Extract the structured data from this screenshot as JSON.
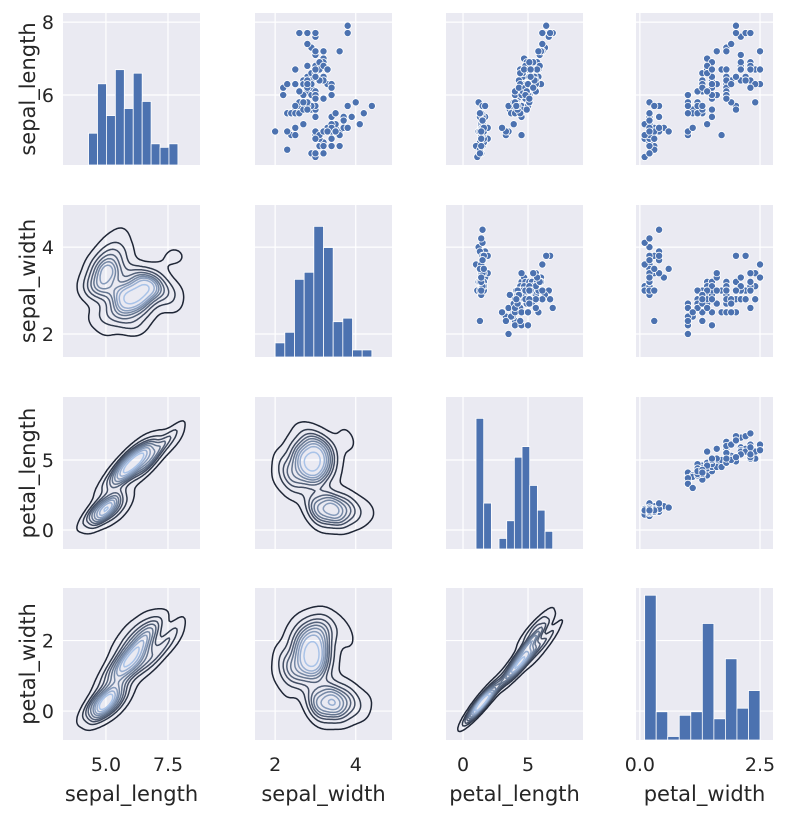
{
  "chart_data": {
    "type": "pairplot",
    "upper": "scatter",
    "lower": "kde",
    "diag": "hist",
    "bins": 10,
    "grid": true,
    "variables": [
      "sepal_length",
      "sepal_width",
      "petal_length",
      "petal_width"
    ],
    "x_limits": {
      "sepal_length": [
        3.27,
        8.79
      ],
      "sepal_width": [
        1.5,
        4.9
      ],
      "petal_length": [
        -1.31,
        9.23
      ],
      "petal_width": [
        -0.08,
        2.77
      ]
    },
    "y_limits": {
      "sepal_length": [
        4.08,
        8.25
      ],
      "sepal_width": [
        1.47,
        4.97
      ],
      "petal_length": [
        -1.36,
        9.5
      ],
      "petal_width": [
        -0.82,
        3.49
      ]
    },
    "x_ticks": {
      "sepal_length": [
        {
          "value": 5.0,
          "label": "5.0"
        },
        {
          "value": 7.5,
          "label": "7.5"
        }
      ],
      "sepal_width": [
        {
          "value": 2,
          "label": "2"
        },
        {
          "value": 4,
          "label": "4"
        }
      ],
      "petal_length": [
        {
          "value": 0,
          "label": "0"
        },
        {
          "value": 5,
          "label": "5"
        }
      ],
      "petal_width": [
        {
          "value": 0.0,
          "label": "0.0"
        },
        {
          "value": 2.5,
          "label": "2.5"
        }
      ]
    },
    "y_ticks": {
      "sepal_length": [
        {
          "value": 6,
          "label": "6"
        },
        {
          "value": 8,
          "label": "8"
        }
      ],
      "sepal_width": [
        {
          "value": 2,
          "label": "2"
        },
        {
          "value": 4,
          "label": "4"
        }
      ],
      "petal_length": [
        {
          "value": 0,
          "label": "0"
        },
        {
          "value": 5,
          "label": "5"
        }
      ],
      "petal_width": [
        {
          "value": 0,
          "label": "0"
        },
        {
          "value": 2,
          "label": "2"
        }
      ]
    },
    "hist_counts": {
      "sepal_length": [
        9,
        23,
        14,
        27,
        16,
        26,
        18,
        6,
        5,
        6
      ],
      "sepal_width": [
        4,
        7,
        22,
        24,
        37,
        31,
        10,
        11,
        2,
        2
      ],
      "petal_length": [
        37,
        13,
        0,
        3,
        8,
        26,
        29,
        18,
        11,
        5
      ],
      "petal_width": [
        41,
        8,
        1,
        7,
        8,
        33,
        6,
        23,
        9,
        14
      ]
    },
    "colors": {
      "panel_bg": "#eaeaf2",
      "grid": "#ffffff",
      "marker": "#4c72b0",
      "kde_outer": "#1f2636",
      "kde_inner": "#a9c3e8"
    },
    "data": {
      "sepal_length": [
        5.1,
        4.9,
        4.7,
        4.6,
        5.0,
        5.4,
        4.6,
        5.0,
        4.4,
        4.9,
        5.4,
        4.8,
        4.8,
        4.3,
        5.8,
        5.7,
        5.4,
        5.1,
        5.7,
        5.1,
        5.4,
        5.1,
        4.6,
        5.1,
        4.8,
        5.0,
        5.0,
        5.2,
        5.2,
        4.7,
        4.8,
        5.4,
        5.2,
        5.5,
        4.9,
        5.0,
        5.5,
        4.9,
        4.4,
        5.1,
        5.0,
        4.5,
        4.4,
        5.0,
        5.1,
        4.8,
        5.1,
        4.6,
        5.3,
        5.0,
        7.0,
        6.4,
        6.9,
        5.5,
        6.5,
        5.7,
        6.3,
        4.9,
        6.6,
        5.2,
        5.0,
        5.9,
        6.0,
        6.1,
        5.6,
        6.7,
        5.6,
        5.8,
        6.2,
        5.6,
        5.9,
        6.1,
        6.3,
        6.1,
        6.4,
        6.6,
        6.8,
        6.7,
        6.0,
        5.7,
        5.5,
        5.5,
        5.8,
        6.0,
        5.4,
        6.0,
        6.7,
        6.3,
        5.6,
        5.5,
        5.5,
        6.1,
        5.8,
        5.0,
        5.6,
        5.7,
        5.7,
        6.2,
        5.1,
        5.7,
        6.3,
        5.8,
        7.1,
        6.3,
        6.5,
        7.6,
        4.9,
        7.3,
        6.7,
        7.2,
        6.5,
        6.4,
        6.8,
        5.7,
        5.8,
        6.4,
        6.5,
        7.7,
        7.7,
        6.0,
        6.9,
        5.6,
        7.7,
        6.3,
        6.7,
        7.2,
        6.2,
        6.1,
        6.4,
        7.2,
        7.4,
        7.9,
        6.4,
        6.3,
        6.1,
        7.7,
        6.3,
        6.4,
        6.0,
        6.9,
        6.7,
        6.9,
        5.8,
        6.8,
        6.7,
        6.7,
        6.3,
        6.5,
        6.2,
        5.9
      ],
      "sepal_width": [
        3.5,
        3.0,
        3.2,
        3.1,
        3.6,
        3.9,
        3.4,
        3.4,
        2.9,
        3.1,
        3.7,
        3.4,
        3.0,
        3.0,
        4.0,
        4.4,
        3.9,
        3.5,
        3.8,
        3.8,
        3.4,
        3.7,
        3.6,
        3.3,
        3.4,
        3.0,
        3.4,
        3.5,
        3.4,
        3.2,
        3.1,
        3.4,
        4.1,
        4.2,
        3.1,
        3.2,
        3.5,
        3.6,
        3.0,
        3.4,
        3.5,
        2.3,
        3.2,
        3.5,
        3.8,
        3.0,
        3.8,
        3.2,
        3.7,
        3.3,
        3.2,
        3.2,
        3.1,
        2.3,
        2.8,
        2.8,
        3.3,
        2.4,
        2.9,
        2.7,
        2.0,
        3.0,
        2.2,
        2.9,
        2.9,
        3.1,
        3.0,
        2.7,
        2.2,
        2.5,
        3.2,
        2.8,
        2.5,
        2.8,
        2.9,
        3.0,
        2.8,
        3.0,
        2.9,
        2.6,
        2.4,
        2.4,
        2.7,
        2.7,
        3.0,
        3.4,
        3.1,
        2.3,
        3.0,
        2.5,
        2.6,
        3.0,
        2.6,
        2.3,
        2.7,
        3.0,
        2.9,
        2.9,
        2.5,
        2.8,
        3.3,
        2.7,
        3.0,
        2.9,
        3.0,
        3.0,
        2.5,
        2.9,
        2.5,
        3.6,
        3.2,
        2.7,
        3.0,
        2.5,
        2.8,
        3.2,
        3.0,
        3.8,
        2.6,
        2.2,
        3.2,
        2.8,
        2.8,
        2.7,
        3.3,
        3.2,
        2.8,
        3.0,
        2.8,
        3.0,
        2.8,
        3.8,
        2.8,
        2.8,
        2.6,
        3.0,
        3.4,
        3.1,
        3.0,
        3.1,
        3.1,
        3.1,
        2.7,
        3.2,
        3.3,
        3.0,
        2.5,
        3.0,
        3.4,
        3.0
      ],
      "petal_length": [
        1.4,
        1.4,
        1.3,
        1.5,
        1.4,
        1.7,
        1.4,
        1.5,
        1.4,
        1.5,
        1.5,
        1.6,
        1.4,
        1.1,
        1.2,
        1.5,
        1.3,
        1.4,
        1.7,
        1.5,
        1.7,
        1.5,
        1.0,
        1.7,
        1.9,
        1.6,
        1.6,
        1.5,
        1.4,
        1.6,
        1.6,
        1.5,
        1.5,
        1.4,
        1.5,
        1.2,
        1.3,
        1.4,
        1.3,
        1.5,
        1.3,
        1.3,
        1.3,
        1.6,
        1.9,
        1.4,
        1.6,
        1.4,
        1.5,
        1.4,
        4.7,
        4.5,
        4.9,
        4.0,
        4.6,
        4.5,
        4.7,
        3.3,
        4.6,
        3.9,
        3.5,
        4.2,
        4.0,
        4.7,
        3.6,
        4.4,
        4.5,
        4.1,
        4.5,
        3.9,
        4.8,
        4.0,
        4.9,
        4.7,
        4.3,
        4.4,
        4.8,
        5.0,
        4.5,
        3.5,
        3.8,
        3.7,
        3.9,
        5.1,
        4.5,
        4.5,
        4.7,
        4.4,
        4.1,
        4.0,
        4.4,
        4.6,
        4.0,
        3.3,
        4.2,
        4.2,
        4.2,
        4.3,
        3.0,
        4.1,
        6.0,
        5.1,
        5.9,
        5.6,
        5.8,
        6.6,
        4.5,
        6.3,
        5.8,
        6.1,
        5.1,
        5.3,
        5.5,
        5.0,
        5.1,
        5.3,
        5.5,
        6.7,
        6.9,
        5.0,
        5.7,
        4.9,
        6.7,
        4.9,
        5.7,
        6.0,
        4.8,
        4.9,
        5.6,
        5.8,
        6.1,
        6.4,
        5.6,
        5.1,
        5.6,
        6.1,
        5.6,
        5.5,
        4.8,
        5.4,
        5.6,
        5.1,
        5.1,
        5.9,
        5.7,
        5.2,
        5.0,
        5.2,
        5.4,
        5.1
      ],
      "petal_width": [
        0.2,
        0.2,
        0.2,
        0.2,
        0.2,
        0.4,
        0.3,
        0.2,
        0.2,
        0.1,
        0.2,
        0.2,
        0.1,
        0.1,
        0.2,
        0.4,
        0.4,
        0.3,
        0.3,
        0.3,
        0.2,
        0.4,
        0.2,
        0.5,
        0.2,
        0.2,
        0.4,
        0.2,
        0.2,
        0.2,
        0.2,
        0.4,
        0.1,
        0.2,
        0.2,
        0.2,
        0.2,
        0.1,
        0.2,
        0.2,
        0.3,
        0.3,
        0.2,
        0.6,
        0.4,
        0.3,
        0.2,
        0.2,
        0.2,
        0.2,
        1.4,
        1.5,
        1.5,
        1.3,
        1.5,
        1.3,
        1.6,
        1.0,
        1.3,
        1.4,
        1.0,
        1.5,
        1.0,
        1.4,
        1.3,
        1.4,
        1.5,
        1.0,
        1.5,
        1.1,
        1.8,
        1.3,
        1.5,
        1.2,
        1.3,
        1.4,
        1.4,
        1.7,
        1.5,
        1.0,
        1.1,
        1.0,
        1.2,
        1.6,
        1.5,
        1.6,
        1.5,
        1.3,
        1.3,
        1.3,
        1.2,
        1.4,
        1.2,
        1.0,
        1.3,
        1.2,
        1.3,
        1.3,
        1.1,
        1.3,
        2.5,
        1.9,
        2.1,
        1.8,
        2.2,
        2.1,
        1.7,
        1.8,
        1.8,
        2.5,
        2.0,
        1.9,
        2.1,
        2.0,
        2.4,
        2.3,
        1.8,
        2.2,
        2.3,
        1.5,
        2.3,
        2.0,
        2.0,
        1.8,
        2.1,
        1.8,
        1.8,
        1.8,
        2.1,
        1.6,
        1.9,
        2.0,
        2.2,
        1.5,
        1.4,
        2.3,
        2.4,
        1.8,
        1.8,
        2.1,
        2.4,
        2.3,
        1.9,
        2.3,
        2.5,
        2.3,
        1.9,
        2.0,
        2.3,
        1.8
      ]
    }
  }
}
